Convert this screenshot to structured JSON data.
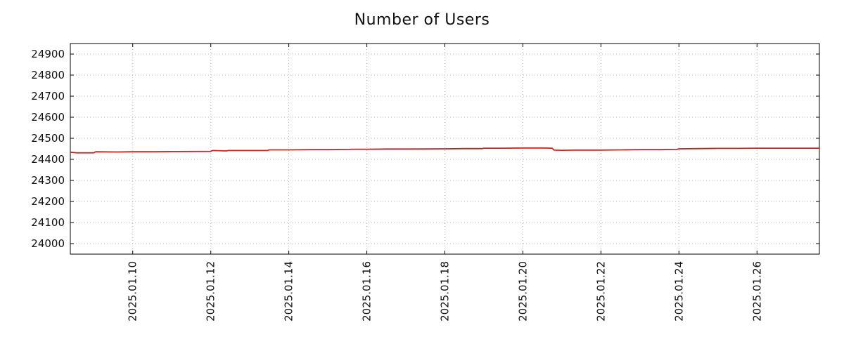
{
  "chart_data": {
    "type": "line",
    "title": "Number of Users",
    "xlabel": "",
    "ylabel": "",
    "grid": true,
    "legend": "none",
    "colors": {
      "line": "#cc2222",
      "grid": "#b8b8b8",
      "axis": "#000000",
      "background": "#ffffff"
    },
    "ylim": [
      23950,
      24950
    ],
    "y_ticks": [
      24000,
      24100,
      24200,
      24300,
      24400,
      24500,
      24600,
      24700,
      24800,
      24900
    ],
    "x_range_days": [
      8.4,
      27.6
    ],
    "x_ticks": [
      {
        "day": 10,
        "label": "2025.01.10"
      },
      {
        "day": 12,
        "label": "2025.01.12"
      },
      {
        "day": 14,
        "label": "2025.01.14"
      },
      {
        "day": 16,
        "label": "2025.01.16"
      },
      {
        "day": 18,
        "label": "2025.01.18"
      },
      {
        "day": 20,
        "label": "2025.01.20"
      },
      {
        "day": 22,
        "label": "2025.01.22"
      },
      {
        "day": 24,
        "label": "2025.01.24"
      },
      {
        "day": 26,
        "label": "2025.01.26"
      }
    ],
    "series": [
      {
        "name": "Number of Users",
        "color": "#cc2222",
        "points": [
          [
            8.4,
            24434
          ],
          [
            8.55,
            24431
          ],
          [
            9.0,
            24431
          ],
          [
            9.05,
            24436
          ],
          [
            9.6,
            24435
          ],
          [
            10.0,
            24436
          ],
          [
            10.6,
            24436
          ],
          [
            11.0,
            24437
          ],
          [
            12.0,
            24438
          ],
          [
            12.05,
            24442
          ],
          [
            12.4,
            24440
          ],
          [
            12.45,
            24442
          ],
          [
            13.0,
            24442
          ],
          [
            13.45,
            24442
          ],
          [
            13.5,
            24445
          ],
          [
            14.0,
            24445
          ],
          [
            14.6,
            24446
          ],
          [
            15.0,
            24446
          ],
          [
            15.55,
            24447
          ],
          [
            15.6,
            24448
          ],
          [
            16.0,
            24448
          ],
          [
            16.5,
            24449
          ],
          [
            17.0,
            24449
          ],
          [
            18.0,
            24450
          ],
          [
            18.5,
            24451
          ],
          [
            18.95,
            24451
          ],
          [
            19.0,
            24453
          ],
          [
            19.5,
            24453
          ],
          [
            20.0,
            24454
          ],
          [
            20.5,
            24454
          ],
          [
            20.75,
            24453
          ],
          [
            20.8,
            24444
          ],
          [
            21.0,
            24443
          ],
          [
            21.3,
            24444
          ],
          [
            22.0,
            24444
          ],
          [
            22.5,
            24445
          ],
          [
            23.0,
            24446
          ],
          [
            23.5,
            24446
          ],
          [
            23.95,
            24447
          ],
          [
            24.0,
            24450
          ],
          [
            24.5,
            24451
          ],
          [
            25.0,
            24452
          ],
          [
            25.5,
            24452
          ],
          [
            26.0,
            24453
          ],
          [
            27.0,
            24453
          ],
          [
            27.6,
            24453
          ]
        ]
      }
    ]
  }
}
